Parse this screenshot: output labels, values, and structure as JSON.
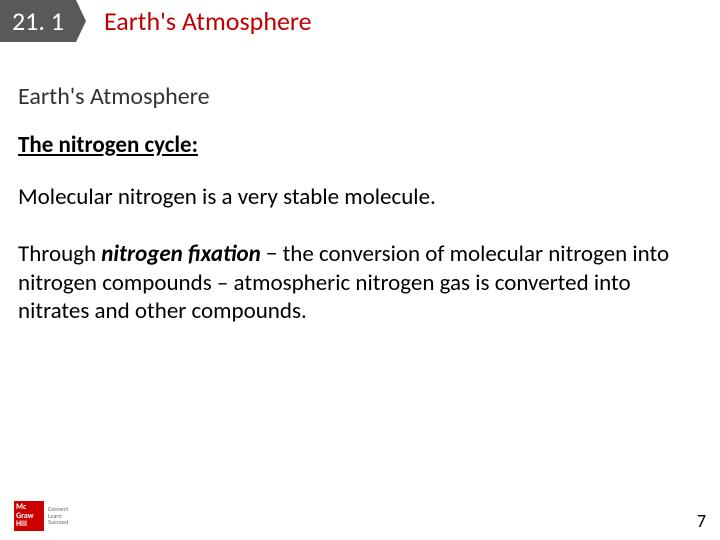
{
  "header": {
    "section_number": "21. 1",
    "title": "Earth's Atmosphere"
  },
  "content": {
    "subtitle": "Earth's Atmosphere",
    "heading": "The nitrogen cycle:",
    "para1": "Molecular nitrogen is a very stable molecule.",
    "para2_prefix": "Through ",
    "para2_emph": "nitrogen fixation",
    "para2_suffix": " − the conversion of molecular nitrogen into nitrogen compounds – atmospheric nitrogen gas is converted into nitrates and other compounds."
  },
  "footer": {
    "logo_line1": "Mc",
    "logo_line2": "Graw",
    "logo_line3": "Hill",
    "logo_tag1": "Connect",
    "logo_tag2": "Learn",
    "logo_tag3": "Succeed",
    "page_number": "7"
  },
  "colors": {
    "section_bg": "#595959",
    "title_color": "#c00000",
    "logo_bg": "#cc0000"
  }
}
